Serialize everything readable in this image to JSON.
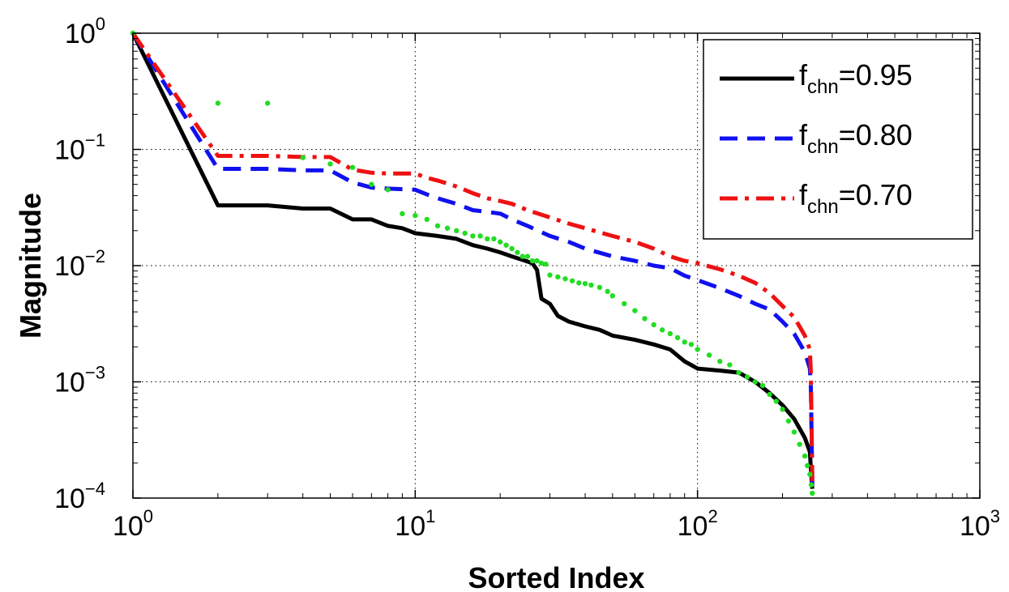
{
  "chart_data": {
    "type": "line",
    "title": "",
    "xlabel": "Sorted Index",
    "ylabel": "Magnitude",
    "xscale": "log",
    "yscale": "log",
    "xlim": [
      1,
      1000
    ],
    "ylim": [
      0.0001,
      1
    ],
    "grid": true,
    "legend_position": "top-right",
    "x_ticks": [
      {
        "base": "10",
        "exp": "0",
        "value": 1
      },
      {
        "base": "10",
        "exp": "1",
        "value": 10
      },
      {
        "base": "10",
        "exp": "2",
        "value": 100
      },
      {
        "base": "10",
        "exp": "3",
        "value": 1000
      }
    ],
    "y_ticks": [
      {
        "base": "10",
        "exp": "0",
        "value": 1
      },
      {
        "base": "10",
        "exp": "−1",
        "value": 0.1
      },
      {
        "base": "10",
        "exp": "−2",
        "value": 0.01
      },
      {
        "base": "10",
        "exp": "−3",
        "value": 0.001
      },
      {
        "base": "10",
        "exp": "−4",
        "value": 0.0001
      }
    ],
    "series": [
      {
        "name_main": "f",
        "name_sub": "chn",
        "name_value": "=0.95",
        "color": "#000000",
        "dash": "solid",
        "x": [
          1,
          2,
          3,
          4,
          5,
          6,
          7,
          8,
          9,
          10,
          12,
          14,
          16,
          18,
          20,
          22,
          24,
          26,
          27,
          28,
          30,
          32,
          35,
          40,
          45,
          50,
          60,
          70,
          80,
          90,
          100,
          120,
          140,
          160,
          180,
          200,
          220,
          240,
          250,
          252,
          255
        ],
        "y": [
          1,
          0.033,
          0.033,
          0.031,
          0.031,
          0.025,
          0.025,
          0.022,
          0.021,
          0.019,
          0.018,
          0.017,
          0.015,
          0.014,
          0.013,
          0.012,
          0.0112,
          0.0105,
          0.0092,
          0.0052,
          0.0047,
          0.0037,
          0.0033,
          0.003,
          0.0028,
          0.0025,
          0.0023,
          0.0021,
          0.0019,
          0.0015,
          0.0013,
          0.00125,
          0.0012,
          0.001,
          0.0008,
          0.00063,
          0.00048,
          0.00033,
          0.00025,
          0.00018,
          0.00012
        ]
      },
      {
        "name_main": "f",
        "name_sub": "chn",
        "name_value": "=0.80",
        "color": "#1010f0",
        "dash": "dashed",
        "x": [
          1,
          2,
          3,
          4,
          5,
          6,
          7,
          8,
          10,
          11,
          12,
          14,
          16,
          18,
          20,
          22,
          25,
          30,
          35,
          40,
          50,
          60,
          70,
          80,
          90,
          100,
          120,
          140,
          160,
          180,
          200,
          220,
          240,
          250,
          252,
          255
        ],
        "y": [
          1,
          0.068,
          0.068,
          0.066,
          0.066,
          0.052,
          0.047,
          0.046,
          0.045,
          0.041,
          0.038,
          0.034,
          0.03,
          0.029,
          0.028,
          0.025,
          0.022,
          0.018,
          0.016,
          0.014,
          0.012,
          0.011,
          0.01,
          0.0095,
          0.0082,
          0.0075,
          0.0064,
          0.0055,
          0.0047,
          0.0042,
          0.0033,
          0.0026,
          0.0018,
          0.0013,
          0.0009,
          0.00013
        ]
      },
      {
        "name_main": "f",
        "name_sub": "chn",
        "name_value": "=0.70",
        "color": "#ee1111",
        "dash": "dashdot",
        "x": [
          1,
          2,
          3,
          4,
          5,
          6,
          7,
          8,
          10,
          11,
          12,
          14,
          16,
          18,
          20,
          22,
          25,
          30,
          35,
          40,
          50,
          60,
          70,
          80,
          90,
          100,
          120,
          140,
          160,
          180,
          200,
          220,
          240,
          250,
          252,
          255
        ],
        "y": [
          1,
          0.088,
          0.088,
          0.086,
          0.086,
          0.067,
          0.063,
          0.062,
          0.062,
          0.057,
          0.054,
          0.048,
          0.042,
          0.038,
          0.036,
          0.034,
          0.03,
          0.026,
          0.023,
          0.021,
          0.018,
          0.016,
          0.014,
          0.012,
          0.011,
          0.0105,
          0.0093,
          0.0082,
          0.0071,
          0.0058,
          0.0045,
          0.0036,
          0.0025,
          0.0019,
          0.0012,
          0.00014
        ]
      },
      {
        "color": "#22dd22",
        "dash": "dotted-markers",
        "x": [
          1,
          2,
          3,
          4,
          5,
          6,
          7,
          8,
          9,
          10,
          11,
          12,
          13,
          14,
          15,
          16,
          17,
          18,
          19,
          20,
          21,
          22,
          23,
          24,
          25,
          26,
          27,
          28,
          29,
          30,
          32,
          34,
          36,
          38,
          40,
          42,
          45,
          48,
          50,
          55,
          60,
          65,
          70,
          75,
          80,
          85,
          90,
          95,
          100,
          110,
          120,
          130,
          140,
          150,
          160,
          170,
          180,
          190,
          200,
          210,
          220,
          230,
          240,
          245,
          250,
          253,
          255
        ],
        "y": [
          1,
          0.25,
          0.25,
          0.085,
          0.075,
          0.07,
          0.05,
          0.045,
          0.028,
          0.027,
          0.025,
          0.022,
          0.021,
          0.02,
          0.019,
          0.018,
          0.018,
          0.017,
          0.017,
          0.016,
          0.015,
          0.014,
          0.013,
          0.012,
          0.012,
          0.011,
          0.011,
          0.0105,
          0.0103,
          0.0083,
          0.008,
          0.0077,
          0.0074,
          0.0071,
          0.007,
          0.0068,
          0.0065,
          0.006,
          0.0055,
          0.0047,
          0.0041,
          0.0035,
          0.0031,
          0.0028,
          0.0026,
          0.0024,
          0.0022,
          0.0021,
          0.0019,
          0.0017,
          0.0015,
          0.0014,
          0.0012,
          0.0011,
          0.001,
          0.00093,
          0.00078,
          0.00068,
          0.00058,
          0.00046,
          0.00037,
          0.00029,
          0.00023,
          0.00019,
          0.00016,
          0.00013,
          0.00011
        ]
      }
    ]
  }
}
